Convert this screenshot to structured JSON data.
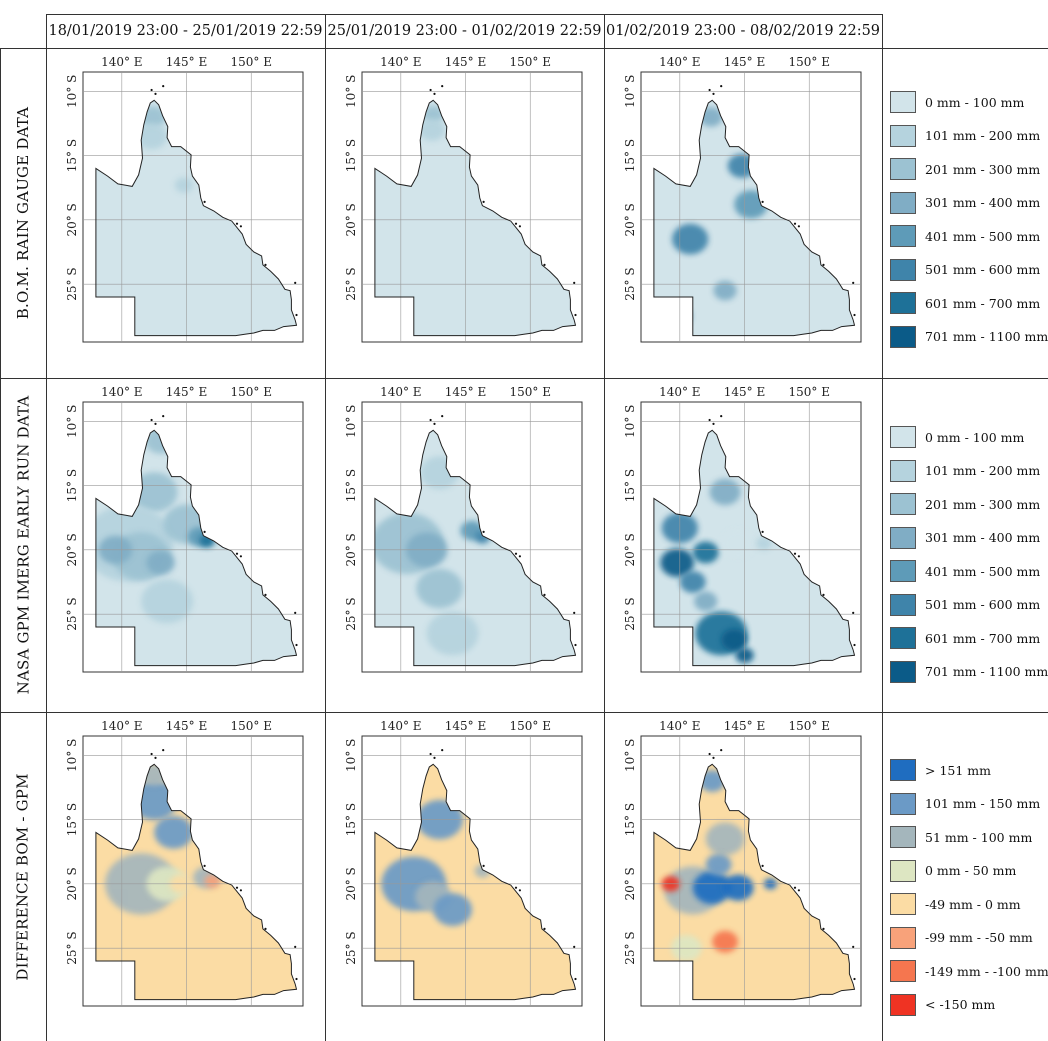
{
  "columns": [
    {
      "label": "18/01/2019 23:00 - 25/01/2019 22:59"
    },
    {
      "label": "25/01/2019 23:00 - 01/02/2019 22:59"
    },
    {
      "label": "01/02/2019 23:00 - 08/02/2019 22:59"
    }
  ],
  "rows": [
    {
      "label": "B.O.M. RAIN GAUGE DATA",
      "legend_key": "rainfall"
    },
    {
      "label": "NASA GPM IMERG EARLY RUN DATA",
      "legend_key": "rainfall"
    },
    {
      "label": "DIFFERENCE BOM - GPM",
      "legend_key": "difference"
    }
  ],
  "axes": {
    "lon_ticks": [
      "140° E",
      "145° E",
      "150° E"
    ],
    "lat_ticks": [
      "10° S",
      "15° S",
      "20° S",
      "25° S"
    ]
  },
  "legends": {
    "rainfall": [
      {
        "label": "0 mm - 100 mm",
        "color": "#d2e4ea"
      },
      {
        "label": "101 mm - 200 mm",
        "color": "#b5d3de"
      },
      {
        "label": "201 mm - 300 mm",
        "color": "#9cc2d2"
      },
      {
        "label": "301 mm - 400 mm",
        "color": "#80adc5"
      },
      {
        "label": "401 mm - 500 mm",
        "color": "#5e9bb8"
      },
      {
        "label": "501 mm - 600 mm",
        "color": "#3f84aa"
      },
      {
        "label": "601 mm - 700 mm",
        "color": "#1e7198"
      },
      {
        "label": "701 mm - 1100 mm",
        "color": "#0b5b88"
      }
    ],
    "difference": [
      {
        "label": "> 151 mm",
        "color": "#1f6dc0"
      },
      {
        "label": "101 mm - 150 mm",
        "color": "#6b9ac6"
      },
      {
        "label": "51 mm - 100 mm",
        "color": "#a4b6bc"
      },
      {
        "label": "0 mm - 50 mm",
        "color": "#dde6c2"
      },
      {
        "label": "-49 mm - 0 mm",
        "color": "#fbdca4"
      },
      {
        "label": "-99 mm - -50 mm",
        "color": "#f8a27a"
      },
      {
        "label": "-149 mm - -100 mm",
        "color": "#f5764f"
      },
      {
        "label": "< -150 mm",
        "color": "#ef3323"
      }
    ]
  },
  "map_colors": {
    "land_base_rain": "#d2e4ea",
    "land_base_diff": "#fbdca4",
    "outline": "#222222",
    "grid": "#999999"
  },
  "patches": [
    [
      [
        {
          "cls": 2,
          "lon": 142.4,
          "lat": 12.0,
          "r": 1.0
        },
        {
          "cls": 1,
          "lon": 142.3,
          "lat": 13.5,
          "r": 1.2
        },
        {
          "cls": 1,
          "lon": 144.8,
          "lat": 17.3,
          "r": 0.7
        }
      ],
      [
        {
          "cls": 2,
          "lon": 142.5,
          "lat": 11.8,
          "r": 0.8
        },
        {
          "cls": 1,
          "lon": 142.4,
          "lat": 13.0,
          "r": 1.0
        }
      ],
      [
        {
          "cls": 3,
          "lon": 142.4,
          "lat": 12.0,
          "r": 0.9
        },
        {
          "cls": 5,
          "lon": 140.8,
          "lat": 21.5,
          "r": 1.4
        },
        {
          "cls": 5,
          "lon": 144.8,
          "lat": 15.8,
          "r": 1.1
        },
        {
          "cls": 4,
          "lon": 145.5,
          "lat": 18.8,
          "r": 1.3
        },
        {
          "cls": 4,
          "lon": 140.0,
          "lat": 27.5,
          "r": 0.9
        },
        {
          "cls": 3,
          "lon": 143.5,
          "lat": 25.5,
          "r": 0.9
        }
      ]
    ],
    [
      [
        {
          "cls": 2,
          "lon": 143.0,
          "lat": 11.5,
          "r": 1.2
        },
        {
          "cls": 2,
          "lon": 142.5,
          "lat": 15.5,
          "r": 1.8
        },
        {
          "cls": 1,
          "lon": 140.5,
          "lat": 19.5,
          "r": 3.5
        },
        {
          "cls": 2,
          "lon": 141.5,
          "lat": 20.5,
          "r": 2.2
        },
        {
          "cls": 3,
          "lon": 139.5,
          "lat": 20.0,
          "r": 1.3
        },
        {
          "cls": 3,
          "lon": 143.0,
          "lat": 21.0,
          "r": 1.1
        },
        {
          "cls": 2,
          "lon": 145.0,
          "lat": 18.0,
          "r": 1.8
        },
        {
          "cls": 4,
          "lon": 146.0,
          "lat": 19.0,
          "r": 0.9
        },
        {
          "cls": 6,
          "lon": 146.6,
          "lat": 19.3,
          "r": 0.6
        },
        {
          "cls": 1,
          "lon": 143.5,
          "lat": 24.0,
          "r": 2.0
        }
      ],
      [
        {
          "cls": 1,
          "lon": 143.0,
          "lat": 14.0,
          "r": 1.5
        },
        {
          "cls": 2,
          "lon": 140.5,
          "lat": 19.5,
          "r": 2.8
        },
        {
          "cls": 3,
          "lon": 142.0,
          "lat": 20.0,
          "r": 1.6
        },
        {
          "cls": 2,
          "lon": 143.0,
          "lat": 23.0,
          "r": 1.8
        },
        {
          "cls": 1,
          "lon": 144.0,
          "lat": 26.5,
          "r": 2.0
        },
        {
          "cls": 4,
          "lon": 145.5,
          "lat": 18.5,
          "r": 0.9
        },
        {
          "cls": 5,
          "lon": 146.3,
          "lat": 19.0,
          "r": 0.6
        }
      ],
      [
        {
          "cls": 5,
          "lon": 140.0,
          "lat": 18.3,
          "r": 1.4
        },
        {
          "cls": 3,
          "lon": 143.5,
          "lat": 15.5,
          "r": 1.2
        },
        {
          "cls": 7,
          "lon": 139.8,
          "lat": 21.0,
          "r": 1.3
        },
        {
          "cls": 6,
          "lon": 142.0,
          "lat": 20.2,
          "r": 1.0
        },
        {
          "cls": 5,
          "lon": 141.0,
          "lat": 22.5,
          "r": 1.0
        },
        {
          "cls": 0,
          "lon": 144.5,
          "lat": 19.5,
          "r": 1.3
        },
        {
          "cls": 6,
          "lon": 143.2,
          "lat": 26.5,
          "r": 2.0
        },
        {
          "cls": 7,
          "lon": 144.2,
          "lat": 27.0,
          "r": 1.0
        },
        {
          "cls": 7,
          "lon": 145.0,
          "lat": 28.2,
          "r": 0.7
        },
        {
          "cls": 1,
          "lon": 146.5,
          "lat": 19.5,
          "r": 0.6
        },
        {
          "cls": 3,
          "lon": 142.0,
          "lat": 24.0,
          "r": 0.9
        }
      ]
    ],
    [
      [
        {
          "cls": 1,
          "lon": 142.5,
          "lat": 13.5,
          "r": 1.8
        },
        {
          "cls": 2,
          "lon": 142.5,
          "lat": 11.5,
          "r": 1.0
        },
        {
          "cls": 2,
          "lon": 141.5,
          "lat": 20.0,
          "r": 2.8
        },
        {
          "cls": 3,
          "lon": 143.5,
          "lat": 20.0,
          "r": 1.6
        },
        {
          "cls": 4,
          "lon": 144.5,
          "lat": 20.0,
          "r": 0.8
        },
        {
          "cls": 2,
          "lon": 146.5,
          "lat": 19.5,
          "r": 1.0
        },
        {
          "cls": 5,
          "lon": 147.0,
          "lat": 19.8,
          "r": 0.6
        },
        {
          "cls": 1,
          "lon": 144.0,
          "lat": 16.0,
          "r": 1.5
        }
      ],
      [
        {
          "cls": 1,
          "lon": 143.0,
          "lat": 15.0,
          "r": 1.8
        },
        {
          "cls": 1,
          "lon": 141.0,
          "lat": 20.0,
          "r": 2.5
        },
        {
          "cls": 2,
          "lon": 142.5,
          "lat": 21.0,
          "r": 1.4
        },
        {
          "cls": 1,
          "lon": 144.0,
          "lat": 22.0,
          "r": 1.5
        },
        {
          "cls": 2,
          "lon": 146.3,
          "lat": 19.0,
          "r": 0.6
        }
      ],
      [
        {
          "cls": 1,
          "lon": 142.5,
          "lat": 12.0,
          "r": 1.0
        },
        {
          "cls": 2,
          "lon": 143.5,
          "lat": 16.5,
          "r": 1.5
        },
        {
          "cls": 2,
          "lon": 141.0,
          "lat": 20.5,
          "r": 2.2
        },
        {
          "cls": 0,
          "lon": 142.5,
          "lat": 20.3,
          "r": 1.5
        },
        {
          "cls": 0,
          "lon": 144.5,
          "lat": 20.3,
          "r": 1.2
        },
        {
          "cls": 1,
          "lon": 143.0,
          "lat": 18.5,
          "r": 1.0
        },
        {
          "cls": 7,
          "lon": 139.3,
          "lat": 20.0,
          "r": 0.7
        },
        {
          "cls": 6,
          "lon": 143.5,
          "lat": 24.5,
          "r": 1.0
        },
        {
          "cls": 3,
          "lon": 140.5,
          "lat": 25.0,
          "r": 1.2
        },
        {
          "cls": 0,
          "lon": 147.0,
          "lat": 20.0,
          "r": 0.5
        }
      ]
    ]
  ]
}
